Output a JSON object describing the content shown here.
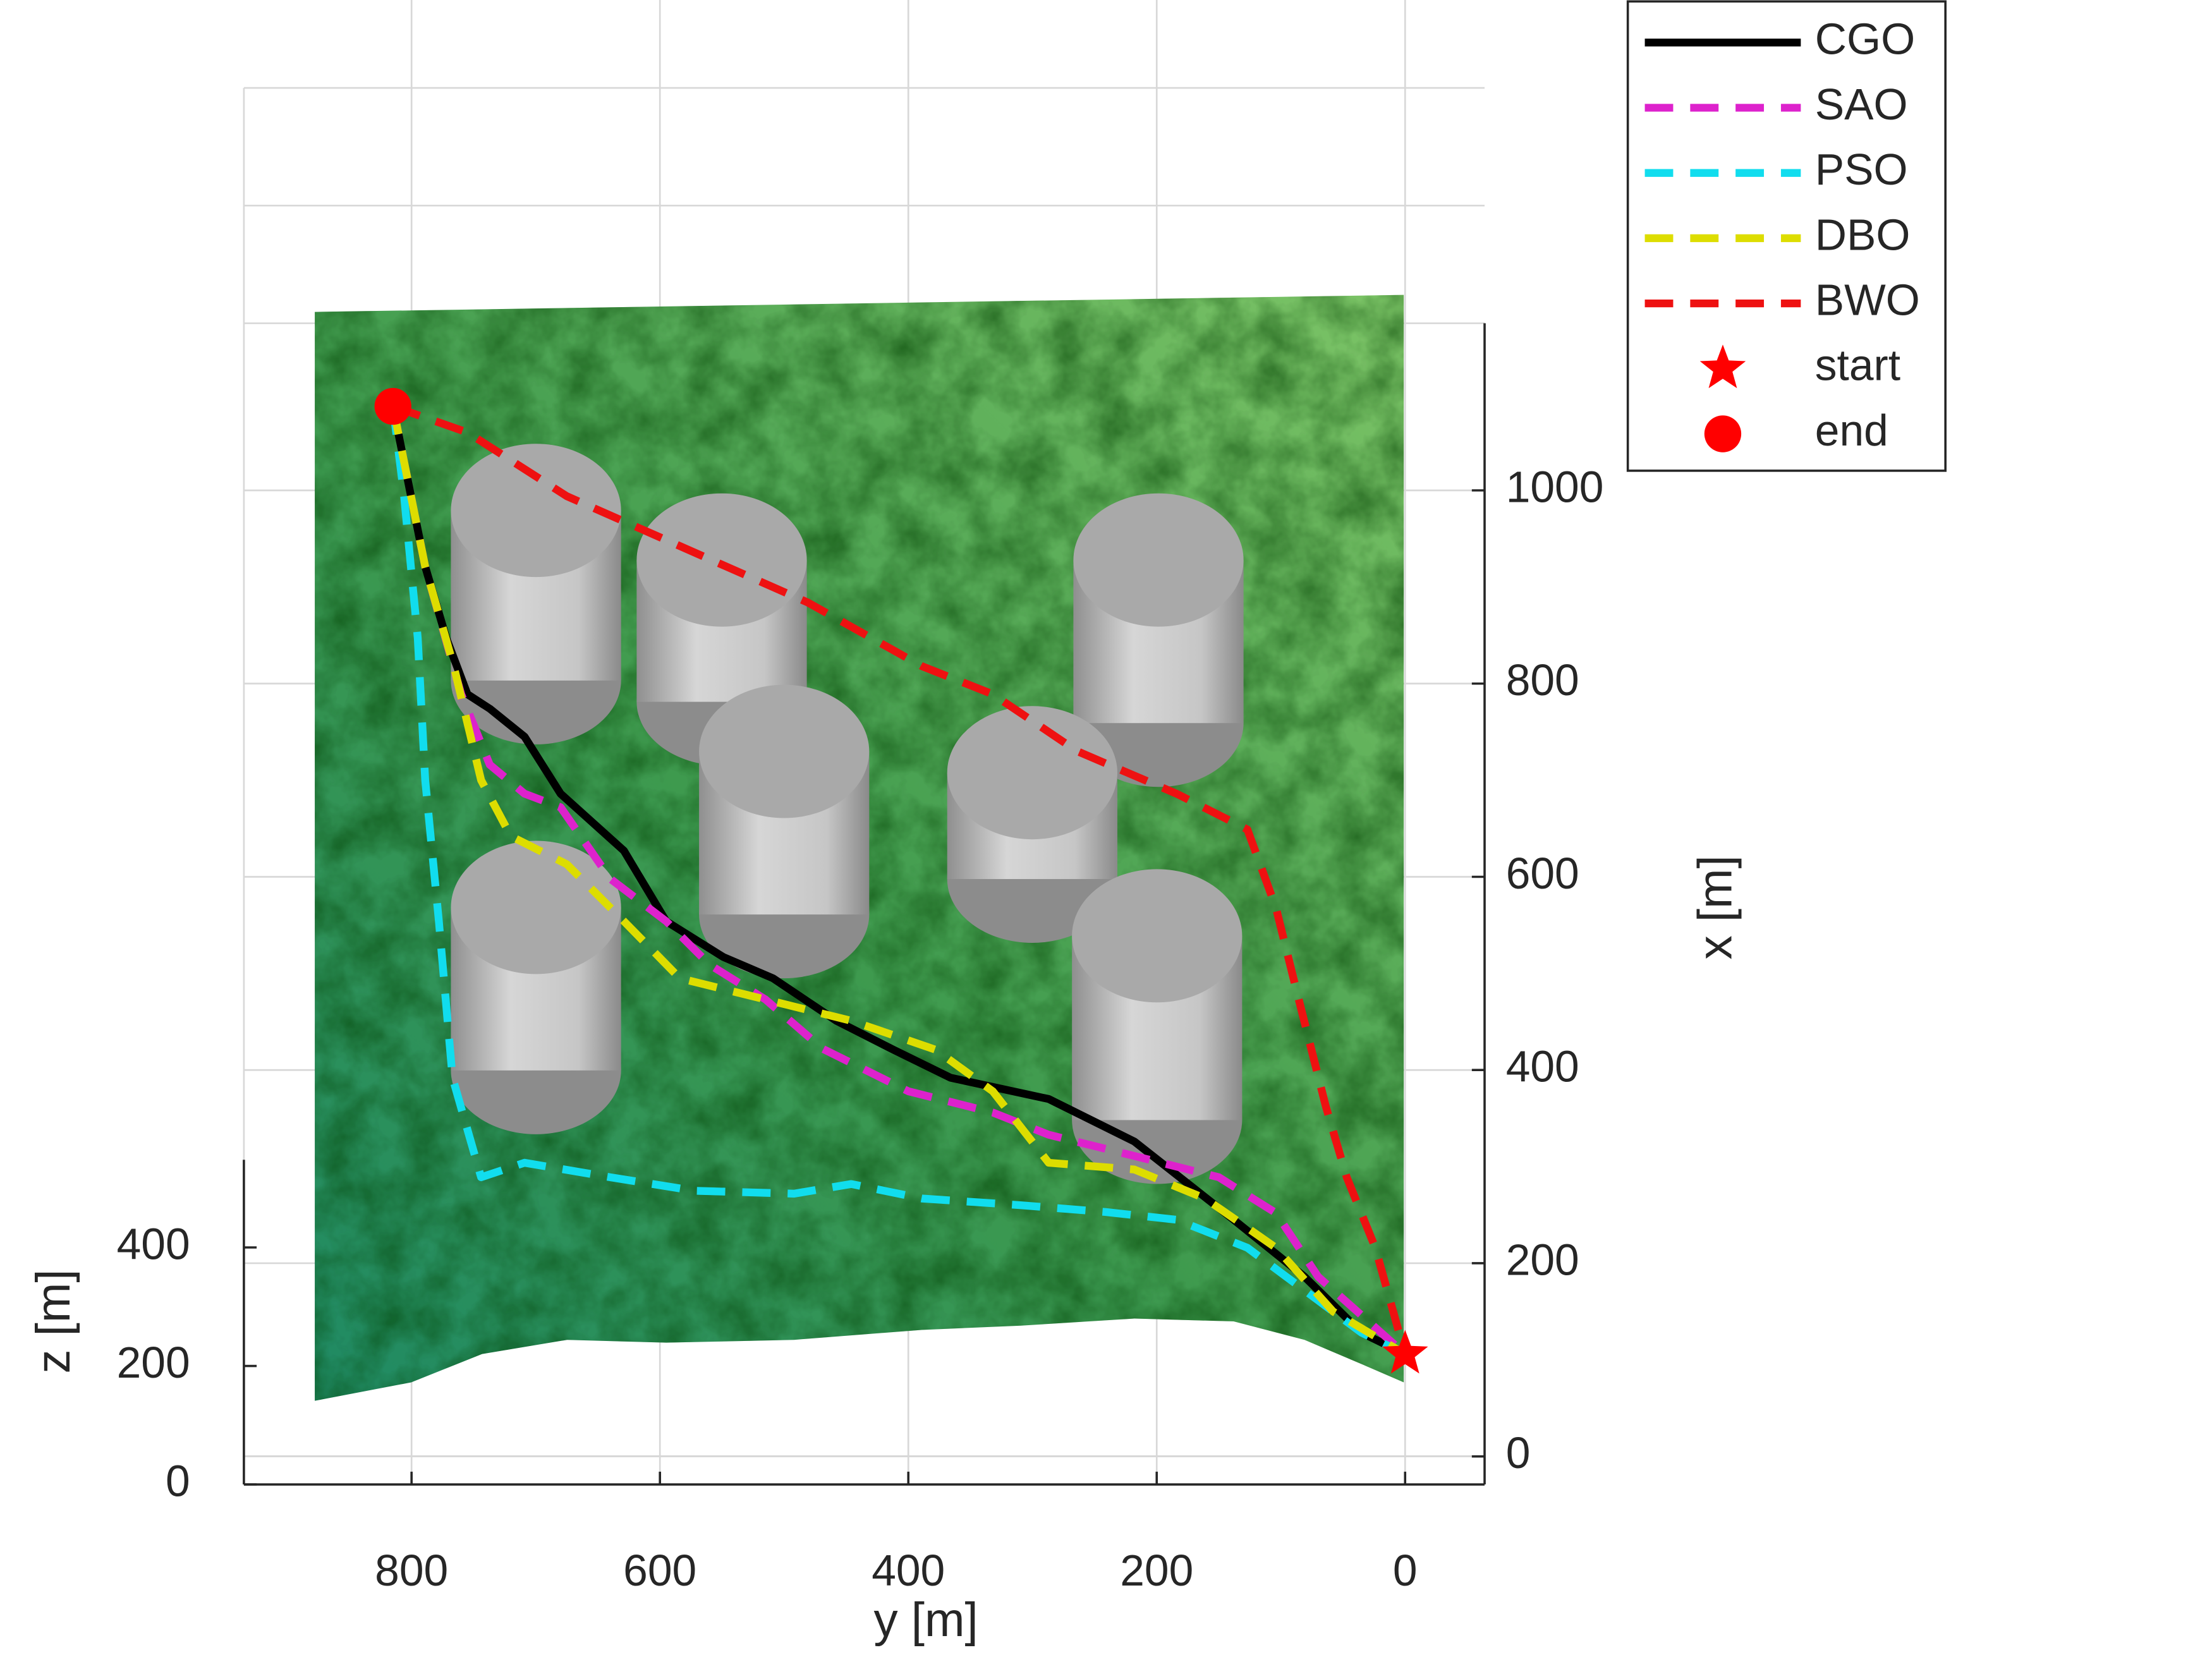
{
  "chart_data": {
    "type": "path3d",
    "xlabel": "y [m]",
    "ylabel": "x [m]",
    "zlabel": "z [m]",
    "ylim": [
      -64,
      935
    ],
    "yticks": [
      800,
      600,
      400,
      200,
      0
    ],
    "y_direction": "reverse",
    "xlim": [
      -29,
      1173
    ],
    "xticks": [
      0,
      200,
      400,
      600,
      800,
      1000
    ],
    "zlim": [
      0,
      548
    ],
    "zticks": [
      0,
      200,
      400
    ],
    "grid": true,
    "legend": "outside-top-right",
    "series": [
      {
        "name": "CGO",
        "color": "#000000",
        "style": "solid",
        "y": [
          815,
          789,
          772,
          755,
          737,
          709,
          680,
          629,
          595,
          549,
          509,
          458,
          412,
          366,
          287,
          218,
          138,
          81,
          35,
          0
        ],
        "x": [
          1087,
          921,
          847,
          789,
          774,
          745,
          686,
          627,
          554,
          517,
          495,
          451,
          421,
          392,
          370,
          326,
          245,
          186,
          128,
          106
        ]
      },
      {
        "name": "SAO",
        "color": "#dd22cc",
        "style": "dashed",
        "y": [
          815,
          789,
          760,
          737,
          709,
          680,
          640,
          595,
          560,
          515,
          469,
          400,
          332,
          287,
          218,
          150,
          104,
          70,
          0
        ],
        "x": [
          1087,
          921,
          789,
          716,
          686,
          672,
          598,
          554,
          509,
          473,
          422,
          378,
          356,
          333,
          311,
          289,
          252,
          186,
          106
        ]
      },
      {
        "name": "PSO",
        "color": "#11ddee",
        "style": "dashed",
        "y": [
          815,
          806,
          795,
          789,
          778,
          767,
          744,
          709,
          640,
          572,
          492,
          446,
          389,
          309,
          241,
          184,
          127,
          81,
          35,
          0
        ],
        "x": [
          1087,
          994,
          847,
          700,
          554,
          392,
          289,
          304,
          289,
          275,
          272,
          282,
          267,
          260,
          253,
          245,
          216,
          172,
          128,
          106
        ]
      },
      {
        "name": "DBO",
        "color": "#dddd00",
        "style": "dashed",
        "y": [
          815,
          789,
          766,
          744,
          720,
          675,
          629,
          584,
          515,
          446,
          378,
          332,
          287,
          218,
          161,
          104,
          58,
          0
        ],
        "x": [
          1087,
          921,
          818,
          700,
          642,
          613,
          554,
          495,
          473,
          451,
          421,
          378,
          304,
          297,
          267,
          216,
          150,
          106
        ]
      },
      {
        "name": "BWO",
        "color": "#ee1111",
        "style": "dashed",
        "y": [
          815,
          755,
          675,
          481,
          389,
          332,
          264,
          184,
          127,
          104,
          87,
          64,
          47,
          24,
          0
        ],
        "x": [
          1087,
          1060,
          994,
          884,
          818,
          789,
          730,
          686,
          649,
          568,
          480,
          363,
          289,
          216,
          106
        ]
      }
    ],
    "start": {
      "name": "start",
      "color": "#ff0000",
      "y": 0,
      "x": 106
    },
    "end": {
      "name": "end",
      "color": "#ff0000",
      "y": 815,
      "x": 1087
    }
  }
}
